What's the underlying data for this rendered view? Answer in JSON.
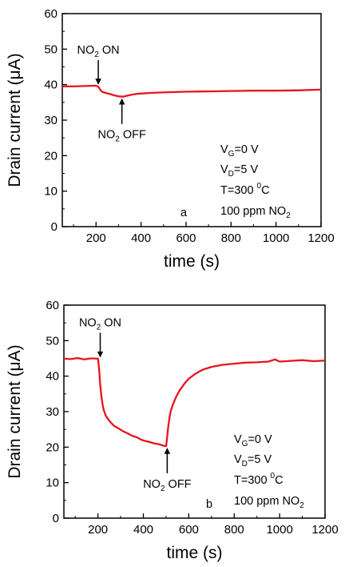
{
  "chart_data": [
    {
      "type": "line",
      "panel_label": "a",
      "xlabel": "time (s)",
      "ylabel": "Drain current (μA)",
      "xlim": [
        50,
        1200
      ],
      "ylim": [
        0,
        60
      ],
      "xticks": [
        200,
        400,
        600,
        800,
        1000,
        1200
      ],
      "yticks": [
        0,
        10,
        20,
        30,
        40,
        50,
        60
      ],
      "series": [
        {
          "color": "#e8141c",
          "x": [
            50,
            100,
            150,
            200,
            210,
            220,
            230,
            240,
            260,
            280,
            300,
            320,
            340,
            360,
            380,
            400,
            450,
            500,
            600,
            700,
            800,
            900,
            1000,
            1100,
            1200
          ],
          "y": [
            39.5,
            39.5,
            39.6,
            39.7,
            39.4,
            38.4,
            37.9,
            37.7,
            37.4,
            37.0,
            36.7,
            36.6,
            36.9,
            37.2,
            37.4,
            37.5,
            37.7,
            37.8,
            38.0,
            38.1,
            38.2,
            38.3,
            38.3,
            38.4,
            38.6
          ]
        }
      ],
      "annotations": [
        {
          "id": "on",
          "base": "NO",
          "sub": "2",
          "rest": " ON",
          "x": 210,
          "y": 39.7,
          "side": "above"
        },
        {
          "id": "off",
          "base": "NO",
          "sub": "2",
          "rest": " OFF",
          "x": 315,
          "y": 36.6,
          "side": "below"
        }
      ],
      "conditions": {
        "vg": {
          "base": "V",
          "sub": "G",
          "rest": "=0 V"
        },
        "vd": {
          "base": "V",
          "sub": "D",
          "rest": "=5 V"
        },
        "temp": {
          "base": "T=300 ",
          "sup": "0",
          "rest": "C"
        },
        "gas": {
          "base": "100 ppm NO",
          "sub": "2"
        }
      }
    },
    {
      "type": "line",
      "panel_label": "b",
      "xlabel": "time (s)",
      "ylabel": "Drain current (μA)",
      "xlim": [
        50,
        1200
      ],
      "ylim": [
        0,
        60
      ],
      "xticks": [
        200,
        400,
        600,
        800,
        1000,
        1200
      ],
      "yticks": [
        0,
        10,
        20,
        30,
        40,
        50,
        60
      ],
      "series": [
        {
          "color": "#e8141c",
          "x": [
            50,
            80,
            110,
            140,
            170,
            200,
            205,
            210,
            215,
            220,
            225,
            235,
            250,
            270,
            290,
            310,
            330,
            350,
            370,
            390,
            410,
            430,
            450,
            470,
            490,
            500,
            505,
            510,
            515,
            520,
            530,
            545,
            560,
            580,
            600,
            630,
            660,
            700,
            750,
            800,
            850,
            900,
            950,
            980,
            1000,
            1050,
            1100,
            1150,
            1200
          ],
          "y": [
            44.9,
            44.8,
            45.1,
            44.7,
            45.0,
            44.9,
            42.0,
            37.5,
            34.5,
            32.2,
            30.5,
            28.8,
            27.4,
            26.0,
            25.3,
            24.5,
            23.9,
            23.2,
            22.8,
            22.1,
            21.7,
            21.4,
            21.0,
            20.8,
            20.4,
            20.3,
            23.0,
            26.0,
            28.2,
            30.0,
            32.0,
            34.3,
            36.0,
            37.8,
            39.3,
            40.7,
            41.8,
            42.6,
            43.2,
            43.5,
            43.8,
            43.9,
            44.1,
            44.7,
            44.1,
            44.3,
            44.5,
            44.2,
            44.4
          ]
        }
      ],
      "annotations": [
        {
          "id": "on",
          "base": "NO",
          "sub": "2",
          "rest": " ON",
          "x": 210,
          "y": 45.0,
          "side": "above"
        },
        {
          "id": "off",
          "base": "NO",
          "sub": "2",
          "rest": " OFF",
          "x": 505,
          "y": 20.3,
          "side": "below"
        }
      ],
      "conditions": {
        "vg": {
          "base": "V",
          "sub": "G",
          "rest": "=0 V"
        },
        "vd": {
          "base": "V",
          "sub": "D",
          "rest": "=5 V"
        },
        "temp": {
          "base": "T=300 ",
          "sup": "0",
          "rest": "C"
        },
        "gas": {
          "base": "100 ppm NO",
          "sub": "2"
        }
      }
    }
  ]
}
